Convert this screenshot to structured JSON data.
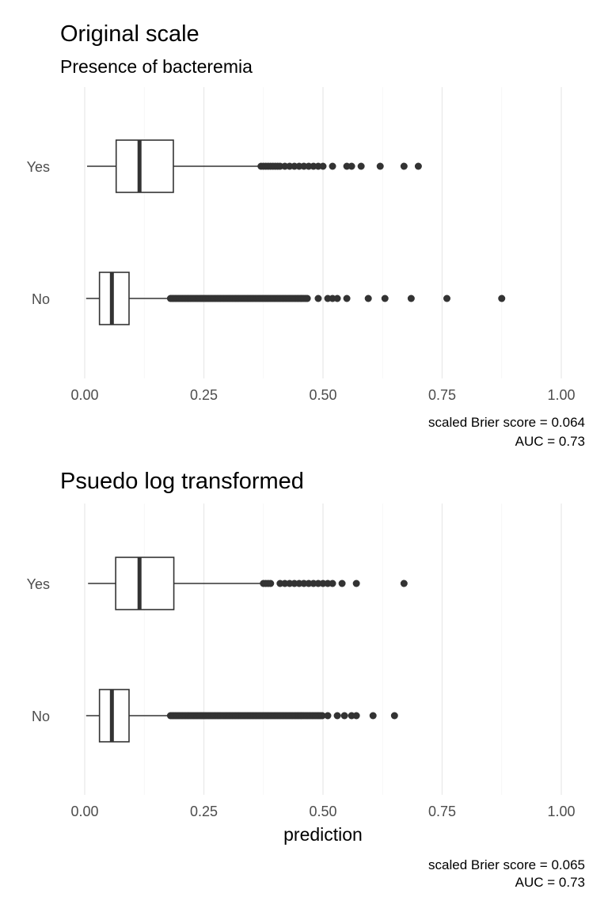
{
  "chart_data": [
    {
      "type": "boxplot",
      "title": "Original scale",
      "subtitle": "Presence of bacteremia",
      "xlabel": "",
      "ylabel": "",
      "xlim": [
        0,
        1
      ],
      "x_ticks": [
        "0.00",
        "0.25",
        "0.50",
        "0.75",
        "1.00"
      ],
      "grid": true,
      "categories": [
        "Yes",
        "No"
      ],
      "boxes": [
        {
          "category": "Yes",
          "min": 0.005,
          "q1": 0.066,
          "median": 0.115,
          "q3": 0.186,
          "max": 0.365,
          "outliers": [
            0.37,
            0.375,
            0.38,
            0.385,
            0.39,
            0.395,
            0.4,
            0.405,
            0.41,
            0.42,
            0.43,
            0.44,
            0.45,
            0.46,
            0.47,
            0.48,
            0.49,
            0.5,
            0.52,
            0.55,
            0.56,
            0.58,
            0.62,
            0.67,
            0.7
          ]
        },
        {
          "category": "No",
          "min": 0.003,
          "q1": 0.031,
          "median": 0.057,
          "q3": 0.093,
          "max": 0.178,
          "outliers_dense_range": [
            0.18,
            0.47
          ],
          "outliers": [
            0.49,
            0.51,
            0.52,
            0.53,
            0.55,
            0.595,
            0.63,
            0.685,
            0.76,
            0.875
          ]
        }
      ],
      "caption_lines": [
        "scaled Brier score = 0.064",
        "AUC = 0.73"
      ]
    },
    {
      "type": "boxplot",
      "title": "Psuedo log transformed",
      "xlabel": "prediction",
      "ylabel": "",
      "xlim": [
        0,
        1
      ],
      "x_ticks": [
        "0.00",
        "0.25",
        "0.50",
        "0.75",
        "1.00"
      ],
      "grid": true,
      "categories": [
        "Yes",
        "No"
      ],
      "boxes": [
        {
          "category": "Yes",
          "min": 0.007,
          "q1": 0.065,
          "median": 0.115,
          "q3": 0.187,
          "max": 0.37,
          "outliers": [
            0.375,
            0.38,
            0.385,
            0.39,
            0.41,
            0.42,
            0.43,
            0.44,
            0.45,
            0.46,
            0.47,
            0.48,
            0.49,
            0.5,
            0.51,
            0.52,
            0.54,
            0.57,
            0.67
          ]
        },
        {
          "category": "No",
          "min": 0.003,
          "q1": 0.031,
          "median": 0.057,
          "q3": 0.093,
          "max": 0.178,
          "outliers_dense_range": [
            0.18,
            0.5
          ],
          "outliers": [
            0.51,
            0.53,
            0.545,
            0.56,
            0.57,
            0.605,
            0.65
          ]
        }
      ],
      "caption_lines": [
        "scaled Brier score = 0.065",
        "AUC = 0.73"
      ]
    }
  ]
}
